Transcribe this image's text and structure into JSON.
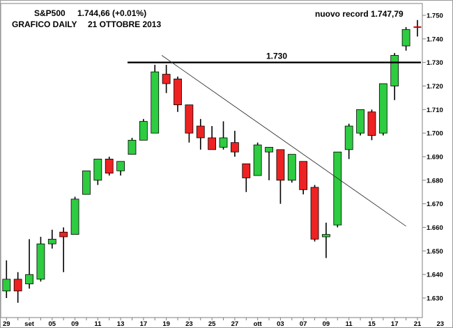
{
  "header": {
    "symbol": "S&P500",
    "quote": "1.744,66 (+0.01%)",
    "subtitle_left": "GRAFICO DAILY",
    "subtitle_right": "21 OTTOBRE 2013",
    "record": "nuovo record 1.747,79"
  },
  "chart_data": {
    "type": "candlestick",
    "title": "S&P500",
    "ylim": [
      1625,
      1755
    ],
    "y_ticks": [
      1630,
      1640,
      1650,
      1660,
      1670,
      1680,
      1690,
      1700,
      1710,
      1720,
      1730,
      1740,
      1750
    ],
    "y_tick_labels": [
      "1.630",
      "1.640",
      "1.650",
      "1.660",
      "1.670",
      "1.680",
      "1.690",
      "1.700",
      "1.710",
      "1.720",
      "1.730",
      "1.740",
      "1.750"
    ],
    "x_ticks": [
      {
        "i": 0,
        "label": "29"
      },
      {
        "i": 2,
        "label": "set"
      },
      {
        "i": 4,
        "label": "05"
      },
      {
        "i": 6,
        "label": "09"
      },
      {
        "i": 8,
        "label": "11"
      },
      {
        "i": 10,
        "label": "13"
      },
      {
        "i": 12,
        "label": "17"
      },
      {
        "i": 14,
        "label": "19"
      },
      {
        "i": 16,
        "label": "23"
      },
      {
        "i": 18,
        "label": "25"
      },
      {
        "i": 20,
        "label": "27"
      },
      {
        "i": 22,
        "label": "ott"
      },
      {
        "i": 24,
        "label": "03"
      },
      {
        "i": 26,
        "label": "07"
      },
      {
        "i": 28,
        "label": "09"
      },
      {
        "i": 30,
        "label": "11"
      },
      {
        "i": 32,
        "label": "15"
      },
      {
        "i": 34,
        "label": "17"
      },
      {
        "i": 36,
        "label": "21"
      },
      {
        "i": 38,
        "label": "23"
      }
    ],
    "candles": [
      {
        "o": 1633,
        "h": 1646,
        "l": 1630,
        "c": 1638
      },
      {
        "o": 1638,
        "h": 1641,
        "l": 1628,
        "c": 1633
      },
      {
        "o": 1636,
        "h": 1655,
        "l": 1634,
        "c": 1640
      },
      {
        "o": 1638,
        "h": 1656,
        "l": 1637,
        "c": 1653
      },
      {
        "o": 1653,
        "h": 1659,
        "l": 1651,
        "c": 1655
      },
      {
        "o": 1658,
        "h": 1660,
        "l": 1641,
        "c": 1656
      },
      {
        "o": 1657,
        "h": 1673,
        "l": 1657,
        "c": 1672
      },
      {
        "o": 1674,
        "h": 1684,
        "l": 1674,
        "c": 1684
      },
      {
        "o": 1680,
        "h": 1689,
        "l": 1678,
        "c": 1689
      },
      {
        "o": 1689,
        "h": 1690,
        "l": 1682,
        "c": 1683
      },
      {
        "o": 1684,
        "h": 1688,
        "l": 1682,
        "c": 1688
      },
      {
        "o": 1691,
        "h": 1698,
        "l": 1691,
        "c": 1697
      },
      {
        "o": 1697,
        "h": 1706,
        "l": 1697,
        "c": 1705
      },
      {
        "o": 1700,
        "h": 1729,
        "l": 1700,
        "c": 1726
      },
      {
        "o": 1725,
        "h": 1729,
        "l": 1717,
        "c": 1721
      },
      {
        "o": 1723,
        "h": 1724,
        "l": 1709,
        "c": 1712
      },
      {
        "o": 1712,
        "h": 1712,
        "l": 1696,
        "c": 1700
      },
      {
        "o": 1703,
        "h": 1706,
        "l": 1693,
        "c": 1698
      },
      {
        "o": 1698,
        "h": 1703,
        "l": 1693,
        "c": 1693
      },
      {
        "o": 1694,
        "h": 1705,
        "l": 1693,
        "c": 1698
      },
      {
        "o": 1696,
        "h": 1701,
        "l": 1690,
        "c": 1692
      },
      {
        "o": 1687,
        "h": 1687,
        "l": 1675,
        "c": 1681
      },
      {
        "o": 1682,
        "h": 1696,
        "l": 1682,
        "c": 1695
      },
      {
        "o": 1692,
        "h": 1694,
        "l": 1680,
        "c": 1694
      },
      {
        "o": 1693,
        "h": 1693,
        "l": 1670,
        "c": 1680
      },
      {
        "o": 1680,
        "h": 1691,
        "l": 1679,
        "c": 1691
      },
      {
        "o": 1688,
        "h": 1688,
        "l": 1674,
        "c": 1676
      },
      {
        "o": 1677,
        "h": 1678,
        "l": 1654,
        "c": 1655
      },
      {
        "o": 1656,
        "h": 1662,
        "l": 1647,
        "c": 1657
      },
      {
        "o": 1661,
        "h": 1692,
        "l": 1660,
        "c": 1692
      },
      {
        "o": 1693,
        "h": 1704,
        "l": 1689,
        "c": 1703
      },
      {
        "o": 1700,
        "h": 1710,
        "l": 1699,
        "c": 1710
      },
      {
        "o": 1709,
        "h": 1710,
        "l": 1697,
        "c": 1699
      },
      {
        "o": 1700,
        "h": 1721,
        "l": 1699,
        "c": 1721
      },
      {
        "o": 1720,
        "h": 1734,
        "l": 1714,
        "c": 1733
      },
      {
        "o": 1737,
        "h": 1745,
        "l": 1735,
        "c": 1744
      },
      {
        "o": 1745,
        "h": 1748,
        "l": 1741,
        "c": 1745
      }
    ],
    "resistance": {
      "value": 1730,
      "label": "1.730"
    },
    "trendline": {
      "start_i": 13.6,
      "start_v": 1733,
      "end_i": 35.0,
      "end_v": 1660.5
    },
    "colors": {
      "up": "#2ecc40",
      "down": "#ee2222",
      "neutral": "#cc0000",
      "frame": "#7f7f7f"
    }
  }
}
